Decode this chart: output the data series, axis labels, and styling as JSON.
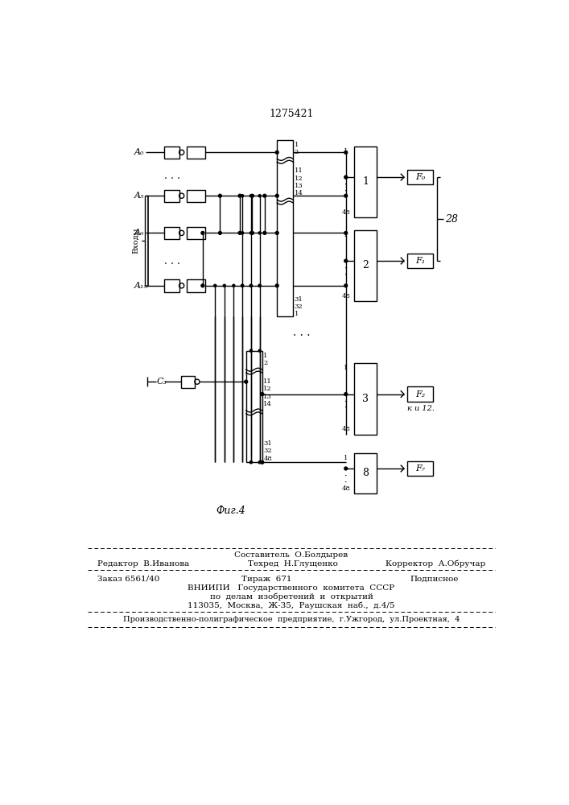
{
  "title": "1275421",
  "fig_label": "Фиг.4",
  "bg_color": "#ffffff",
  "line_color": "#000000",
  "footer6": "Производственно-полиграфическое предприятие, г.Ужгород, ул.Проектная, 4"
}
